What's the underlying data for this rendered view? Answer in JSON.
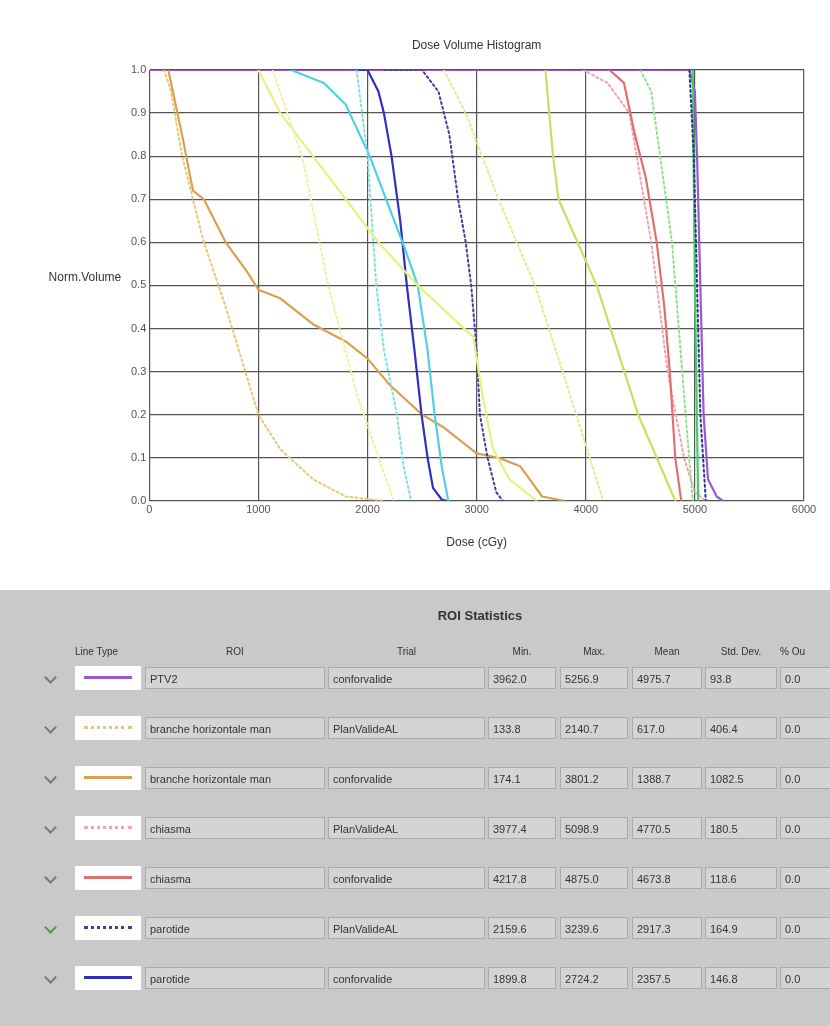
{
  "chart_data": {
    "type": "line",
    "title": "Dose Volume Histogram",
    "xlabel": "Dose (cGy)",
    "ylabel": "Norm.Volume",
    "xlim": [
      0,
      6000
    ],
    "xticks": [
      0,
      1000,
      2000,
      3000,
      4000,
      5000,
      6000
    ],
    "ylim": [
      0,
      1
    ],
    "yticks": [
      {
        "value": 0,
        "label": "0.0"
      },
      {
        "value": 0.1,
        "label": "0.1"
      },
      {
        "value": 0.2,
        "label": "0.2"
      },
      {
        "value": 0.3,
        "label": "0.3"
      },
      {
        "value": 0.4,
        "label": "0.4"
      },
      {
        "value": 0.5,
        "label": "0.5"
      },
      {
        "value": 0.6,
        "label": "0.6"
      },
      {
        "value": 0.7,
        "label": "0.7"
      },
      {
        "value": 0.8,
        "label": "0.8"
      },
      {
        "value": 0.9,
        "label": "0.9"
      },
      {
        "value": 1,
        "label": "1.0"
      }
    ],
    "grid": true,
    "legend": "bottom",
    "marker": "none",
    "series": [
      {
        "name": "PTV2",
        "color": "#9b59d0",
        "line_style": "solid",
        "x": [
          0,
          4950,
          5000,
          5020,
          5050,
          5080,
          5120,
          5200,
          5257
        ],
        "values": [
          1,
          1,
          0.95,
          0.8,
          0.5,
          0.2,
          0.05,
          0.01,
          0
        ]
      },
      {
        "name": "branche horizontale man",
        "color": "#e8c878",
        "line_style": "dotted",
        "x": [
          134,
          200,
          300,
          500,
          700,
          1000,
          1200,
          1500,
          1800,
          2141
        ],
        "values": [
          1,
          0.95,
          0.8,
          0.6,
          0.45,
          0.2,
          0.12,
          0.05,
          0.01,
          0
        ]
      },
      {
        "name": "branche horizontale man",
        "color": "#d9a050",
        "line_style": "solid",
        "x": [
          174,
          300,
          400,
          500,
          700,
          900,
          1000,
          1200,
          1500,
          1800,
          2000,
          2200,
          2500,
          2700,
          3000,
          3200,
          3400,
          3600,
          3801
        ],
        "values": [
          1,
          0.85,
          0.72,
          0.7,
          0.6,
          0.53,
          0.49,
          0.47,
          0.41,
          0.37,
          0.33,
          0.27,
          0.2,
          0.17,
          0.11,
          0.1,
          0.08,
          0.01,
          0
        ]
      },
      {
        "name": "chiasma",
        "color": "#f4a0b0",
        "line_style": "dotted",
        "x": [
          3977,
          4200,
          4400,
          4600,
          4750,
          4900,
          5000,
          5099
        ],
        "values": [
          1,
          0.97,
          0.9,
          0.6,
          0.3,
          0.1,
          0.02,
          0
        ]
      },
      {
        "name": "chiasma",
        "color": "#e07070",
        "line_style": "solid",
        "x": [
          4218,
          4350,
          4450,
          4550,
          4650,
          4720,
          4770,
          4820,
          4875
        ],
        "values": [
          1,
          0.97,
          0.85,
          0.75,
          0.6,
          0.45,
          0.3,
          0.1,
          0
        ]
      },
      {
        "name": "parotide",
        "color": "#4040a0",
        "line_style": "dotted",
        "x": [
          2160,
          2500,
          2650,
          2750,
          2830,
          2900,
          2950,
          3000,
          3030,
          3100,
          3180,
          3240
        ],
        "values": [
          1,
          1,
          0.95,
          0.85,
          0.7,
          0.6,
          0.5,
          0.35,
          0.2,
          0.1,
          0.02,
          0
        ]
      },
      {
        "name": "parotide",
        "color": "#3030c0",
        "line_style": "solid",
        "x": [
          1900,
          2000,
          2100,
          2150,
          2220,
          2300,
          2360,
          2430,
          2495,
          2550,
          2600,
          2680,
          2724
        ],
        "values": [
          1,
          1,
          0.95,
          0.9,
          0.8,
          0.65,
          0.5,
          0.35,
          0.2,
          0.1,
          0.03,
          0.003,
          0
        ]
      },
      {
        "color": "#50d0e0",
        "line_style": "solid",
        "x": [
          1300,
          1600,
          1800,
          2020,
          2200,
          2350,
          2460,
          2550,
          2615,
          2680,
          2740
        ],
        "values": [
          1,
          0.97,
          0.92,
          0.8,
          0.68,
          0.58,
          0.5,
          0.35,
          0.2,
          0.08,
          0
        ]
      },
      {
        "color": "#80e0e0",
        "line_style": "dotted",
        "x": [
          1900,
          1950,
          2000,
          2080,
          2150,
          2270,
          2330,
          2400
        ],
        "values": [
          1,
          0.9,
          0.8,
          0.5,
          0.35,
          0.2,
          0.08,
          0
        ]
      },
      {
        "color": "#e8f080",
        "line_style": "solid",
        "x": [
          1000,
          1200,
          1500,
          1800,
          2100,
          2460,
          2970,
          3050,
          3150,
          3300,
          3550
        ],
        "values": [
          1,
          0.9,
          0.8,
          0.7,
          0.6,
          0.5,
          0.38,
          0.25,
          0.12,
          0.05,
          0
        ]
      },
      {
        "color": "#f0f0a0",
        "line_style": "dotted",
        "x": [
          1130,
          1400,
          1640,
          1900,
          2100,
          2240
        ],
        "values": [
          1,
          0.8,
          0.5,
          0.25,
          0.1,
          0
        ]
      },
      {
        "color": "#e8e890",
        "line_style": "dotted",
        "x": [
          2700,
          2900,
          3200,
          3535,
          3850,
          4160
        ],
        "values": [
          1,
          0.9,
          0.7,
          0.5,
          0.25,
          0
        ]
      },
      {
        "color": "#c8e060",
        "line_style": "solid",
        "x": [
          3630,
          3700,
          3750,
          4100,
          4480,
          4820
        ],
        "values": [
          1,
          0.8,
          0.7,
          0.5,
          0.2,
          0
        ]
      },
      {
        "color": "#90e090",
        "line_style": "dotted",
        "x": [
          4500,
          4600,
          4790,
          4915,
          4980
        ],
        "values": [
          1,
          0.95,
          0.6,
          0.2,
          0
        ]
      },
      {
        "color": "#40d060",
        "line_style": "solid",
        "x": [
          4980,
          5000,
          5030
        ],
        "values": [
          1,
          0.5,
          0
        ]
      },
      {
        "color": "#303090",
        "line_style": "dotted",
        "x": [
          4950,
          4990,
          5020,
          5050,
          5100
        ],
        "values": [
          1,
          0.8,
          0.5,
          0.2,
          0
        ]
      }
    ],
    "annotations": [
      "ROI Statistics",
      "Line Type",
      "ROI",
      "Trial",
      "Min.",
      "Max.",
      "Mean",
      "Std. Dev.",
      "% Ou",
      "conforvalide",
      "3962.0",
      "5256.9",
      "4975.7",
      "93.8",
      "0.0",
      "PlanValideAL",
      "133.8",
      "2140.7",
      "617.0",
      "406.4",
      "0.0",
      "conforvalide",
      "174.1",
      "3801.2",
      "1388.7",
      "1082.5",
      "0.0",
      "PlanValideAL",
      "3977.4",
      "5098.9",
      "4770.5",
      "180.5",
      "0.0",
      "conforvalide",
      "4217.8",
      "4875.0",
      "4673.8",
      "118.6",
      "0.0",
      "PlanValideAL",
      "2159.6",
      "3239.6",
      "2917.3",
      "164.9",
      "0.0",
      "conforvalide",
      "1899.8",
      "2724.2",
      "2357.5",
      "146.8",
      "0.0"
    ]
  }
}
